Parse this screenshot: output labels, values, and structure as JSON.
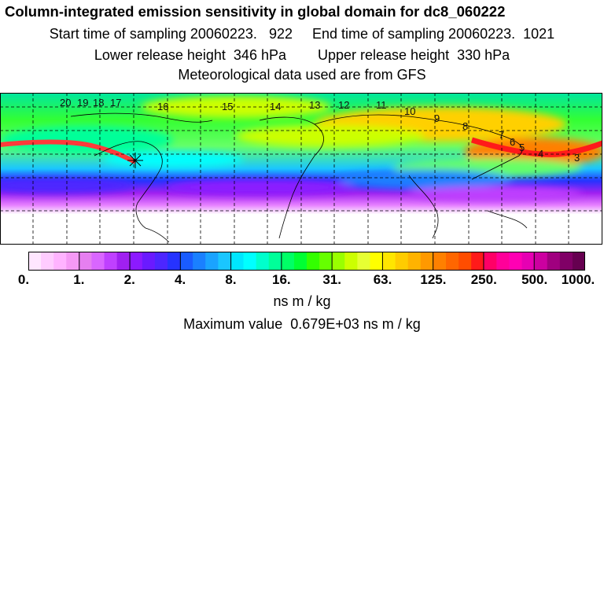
{
  "header": {
    "title": "Column-integrated emission sensitivity in global domain for dc8_060222",
    "sampling_line": "Start time of sampling 20060223.   922     End time of sampling 20060223.  1021",
    "release_line": "Lower release height  346 hPa        Upper release height  330 hPa",
    "met_line": "Meteorological data used are from GFS"
  },
  "map": {
    "trajectory_labels": [
      "20",
      "19",
      "18",
      "17",
      "16",
      "15",
      "14",
      "13",
      "12",
      "11",
      "10",
      "9",
      "8",
      "7",
      "6",
      "5",
      "4",
      "3"
    ],
    "release_marker": "asterisk"
  },
  "legend": {
    "ticks": [
      "0.",
      "1.",
      "2.",
      "4.",
      "8.",
      "16.",
      "31.",
      "63.",
      "125.",
      "250.",
      "500.",
      "1000."
    ],
    "colors": [
      "#ffe6ff",
      "#ffccff",
      "#ffb3ff",
      "#f599f5",
      "#e67ff0",
      "#d966ff",
      "#bf40ff",
      "#a020f0",
      "#8c1aff",
      "#6a1aff",
      "#4d26ff",
      "#2633ff",
      "#1a5cff",
      "#1a80ff",
      "#1aa3ff",
      "#1ac6ff",
      "#00e6ff",
      "#00ffff",
      "#00ffcc",
      "#00ff99",
      "#00ff66",
      "#00ff33",
      "#33ff00",
      "#66ff00",
      "#99ff00",
      "#ccff00",
      "#e6ff33",
      "#ffff00",
      "#ffe600",
      "#ffcc00",
      "#ffb300",
      "#ff9900",
      "#ff8000",
      "#ff6600",
      "#ff4d00",
      "#ff1a1a",
      "#ff0066",
      "#ff0099",
      "#ff00b3",
      "#e600b3",
      "#cc00a0",
      "#a0007f",
      "#800066",
      "#660050"
    ],
    "units": "ns m / kg",
    "max_value": "Maximum value  0.679E+03 ns m / kg"
  }
}
